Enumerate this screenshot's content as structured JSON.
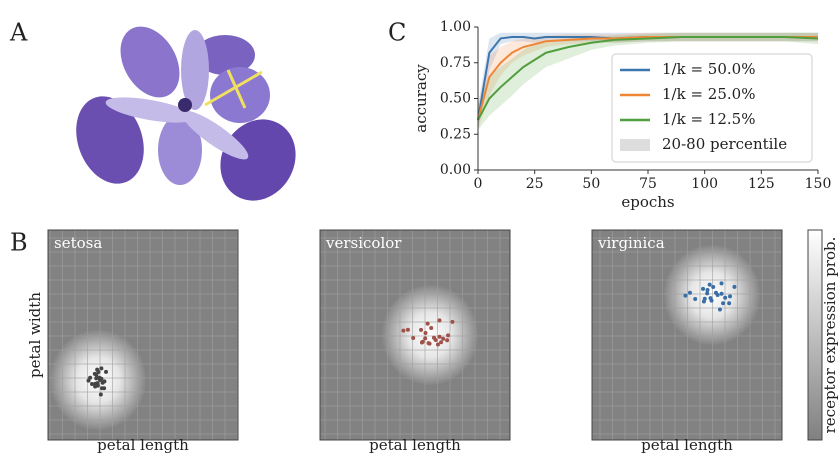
{
  "panel_labels": {
    "a": "A",
    "b": "B",
    "c": "C"
  },
  "chart_data": {
    "type": "line",
    "x_label": "epochs",
    "y_label": "accuracy",
    "x": [
      0,
      5,
      10,
      15,
      20,
      25,
      30,
      40,
      50,
      60,
      75,
      90,
      105,
      120,
      135,
      150
    ],
    "series": [
      {
        "name": "1/k = 50.0%",
        "color": "#3b76af",
        "values": [
          0.35,
          0.82,
          0.92,
          0.93,
          0.93,
          0.92,
          0.93,
          0.93,
          0.93,
          0.92,
          0.93,
          0.93,
          0.93,
          0.93,
          0.93,
          0.93
        ],
        "lower": [
          0.28,
          0.7,
          0.88,
          0.9,
          0.9,
          0.89,
          0.9,
          0.9,
          0.9,
          0.89,
          0.9,
          0.9,
          0.9,
          0.9,
          0.9,
          0.9
        ],
        "upper": [
          0.45,
          0.92,
          0.96,
          0.96,
          0.96,
          0.96,
          0.96,
          0.96,
          0.96,
          0.96,
          0.96,
          0.96,
          0.96,
          0.96,
          0.96,
          0.96
        ]
      },
      {
        "name": "1/k = 25.0%",
        "color": "#ef8636",
        "values": [
          0.35,
          0.65,
          0.75,
          0.82,
          0.86,
          0.88,
          0.9,
          0.91,
          0.92,
          0.92,
          0.93,
          0.93,
          0.93,
          0.93,
          0.93,
          0.93
        ],
        "lower": [
          0.28,
          0.52,
          0.66,
          0.75,
          0.8,
          0.83,
          0.86,
          0.88,
          0.89,
          0.89,
          0.9,
          0.9,
          0.9,
          0.9,
          0.9,
          0.9
        ],
        "upper": [
          0.45,
          0.8,
          0.86,
          0.9,
          0.92,
          0.93,
          0.94,
          0.95,
          0.95,
          0.95,
          0.96,
          0.96,
          0.96,
          0.96,
          0.96,
          0.96
        ]
      },
      {
        "name": "1/k = 12.5%",
        "color": "#519e3e",
        "values": [
          0.35,
          0.5,
          0.58,
          0.65,
          0.72,
          0.77,
          0.82,
          0.86,
          0.89,
          0.91,
          0.92,
          0.93,
          0.93,
          0.93,
          0.93,
          0.92
        ],
        "lower": [
          0.28,
          0.38,
          0.45,
          0.52,
          0.6,
          0.66,
          0.72,
          0.78,
          0.84,
          0.87,
          0.89,
          0.9,
          0.9,
          0.9,
          0.9,
          0.88
        ],
        "upper": [
          0.45,
          0.66,
          0.72,
          0.78,
          0.84,
          0.88,
          0.9,
          0.92,
          0.93,
          0.94,
          0.95,
          0.96,
          0.96,
          0.96,
          0.96,
          0.96
        ]
      }
    ],
    "band_label": "20-80 percentile",
    "band_color": "#dddddd",
    "xlim": [
      0,
      150
    ],
    "ylim": [
      0,
      1
    ],
    "xticks": [
      0,
      25,
      50,
      75,
      100,
      125,
      150
    ],
    "yticks": [
      {
        "value": 0,
        "label": "0.00"
      },
      {
        "value": 0.25,
        "label": "0.25"
      },
      {
        "value": 0.5,
        "label": "0.50"
      },
      {
        "value": 0.75,
        "label": "0.75"
      },
      {
        "value": 1,
        "label": "1.00"
      }
    ],
    "legend": "lower right"
  },
  "heatmaps": {
    "species": [
      "setosa",
      "versicolor",
      "virginica"
    ],
    "x_label": "petal length",
    "y_label": "petal width",
    "colorbar_label": "receptor expression prob."
  }
}
